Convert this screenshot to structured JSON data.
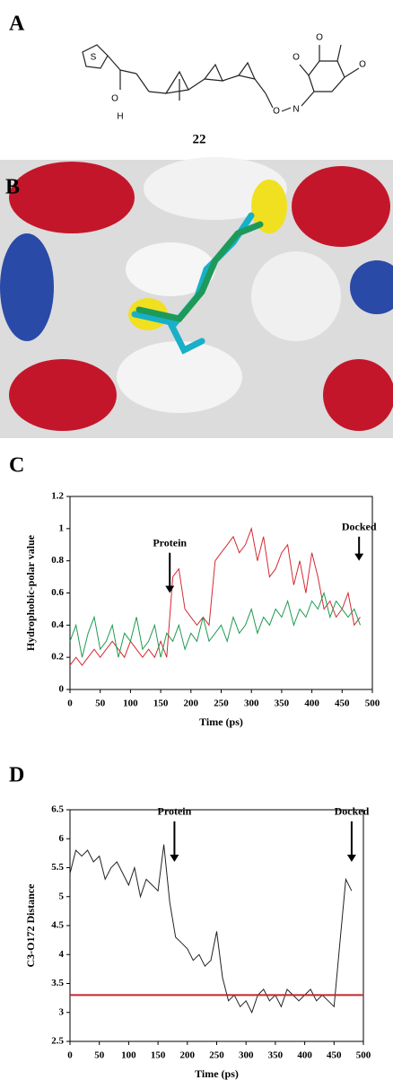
{
  "figure": {
    "panel_labels": [
      "A",
      "B",
      "C",
      "D"
    ],
    "compound_label": "22",
    "structure_labels": [
      "S",
      "O",
      "H",
      "O",
      "N",
      "O",
      "O",
      "O"
    ]
  },
  "chart_data": [
    {
      "type": "line",
      "ylabel": "Hydrophobic-polar value",
      "xlabel": "Time (ps)",
      "xlim": [
        0,
        500
      ],
      "xticks": [
        0,
        50,
        100,
        150,
        200,
        250,
        300,
        350,
        400,
        450,
        500
      ],
      "ylim": [
        0,
        1.2
      ],
      "yticks": [
        0,
        0.2,
        0.4,
        0.6,
        0.8,
        1,
        1.2
      ],
      "annotations": [
        "Protein",
        "Docked"
      ],
      "x": [
        0,
        10,
        20,
        30,
        40,
        50,
        60,
        70,
        80,
        90,
        100,
        110,
        120,
        130,
        140,
        150,
        160,
        170,
        180,
        190,
        200,
        210,
        220,
        230,
        240,
        250,
        260,
        270,
        280,
        290,
        300,
        310,
        320,
        330,
        340,
        350,
        360,
        370,
        380,
        390,
        400,
        410,
        420,
        430,
        440,
        450,
        460,
        470,
        480
      ],
      "series": [
        {
          "color": "#d42a32",
          "values": [
            0.15,
            0.2,
            0.15,
            0.2,
            0.25,
            0.2,
            0.25,
            0.3,
            0.25,
            0.2,
            0.3,
            0.25,
            0.2,
            0.25,
            0.2,
            0.3,
            0.2,
            0.7,
            0.75,
            0.5,
            0.45,
            0.4,
            0.45,
            0.4,
            0.8,
            0.85,
            0.9,
            0.95,
            0.85,
            0.9,
            1.0,
            0.8,
            0.95,
            0.7,
            0.75,
            0.85,
            0.9,
            0.65,
            0.8,
            0.6,
            0.85,
            0.7,
            0.5,
            0.55,
            0.45,
            0.5,
            0.6,
            0.4,
            0.45
          ]
        },
        {
          "color": "#1f9a50",
          "values": [
            0.3,
            0.4,
            0.2,
            0.35,
            0.45,
            0.25,
            0.3,
            0.4,
            0.2,
            0.35,
            0.3,
            0.45,
            0.25,
            0.3,
            0.4,
            0.2,
            0.35,
            0.3,
            0.4,
            0.25,
            0.35,
            0.3,
            0.45,
            0.3,
            0.35,
            0.4,
            0.3,
            0.45,
            0.35,
            0.4,
            0.5,
            0.35,
            0.45,
            0.4,
            0.5,
            0.45,
            0.55,
            0.4,
            0.5,
            0.45,
            0.55,
            0.5,
            0.6,
            0.45,
            0.55,
            0.5,
            0.45,
            0.5,
            0.4
          ]
        }
      ]
    },
    {
      "type": "line",
      "ylabel": "C3-O172 Distance",
      "xlabel": "Time (ps)",
      "xlim": [
        0,
        500
      ],
      "xticks": [
        0,
        50,
        100,
        150,
        200,
        250,
        300,
        350,
        400,
        450,
        500
      ],
      "ylim": [
        2.5,
        6.5
      ],
      "yticks": [
        2.5,
        3,
        3.5,
        4,
        4.5,
        5,
        5.5,
        6,
        6.5
      ],
      "annotations": [
        "Protein",
        "Docked"
      ],
      "reference_line": {
        "value": 3.3,
        "color": "#c0272d"
      },
      "x": [
        0,
        10,
        20,
        30,
        40,
        50,
        60,
        70,
        80,
        90,
        100,
        110,
        120,
        130,
        140,
        150,
        160,
        170,
        180,
        190,
        200,
        210,
        220,
        230,
        240,
        250,
        260,
        270,
        280,
        290,
        300,
        310,
        320,
        330,
        340,
        350,
        360,
        370,
        380,
        390,
        400,
        410,
        420,
        430,
        440,
        450,
        460,
        470,
        480
      ],
      "series": [
        {
          "color": "#222222",
          "values": [
            5.4,
            5.8,
            5.7,
            5.8,
            5.6,
            5.7,
            5.3,
            5.5,
            5.6,
            5.4,
            5.2,
            5.5,
            5.0,
            5.3,
            5.2,
            5.1,
            5.9,
            4.9,
            4.3,
            4.2,
            4.1,
            3.9,
            4.0,
            3.8,
            3.9,
            4.4,
            3.6,
            3.2,
            3.3,
            3.1,
            3.2,
            3.0,
            3.3,
            3.4,
            3.2,
            3.3,
            3.1,
            3.4,
            3.3,
            3.2,
            3.3,
            3.4,
            3.2,
            3.3,
            3.2,
            3.1,
            4.2,
            5.3,
            5.1
          ]
        }
      ]
    }
  ]
}
